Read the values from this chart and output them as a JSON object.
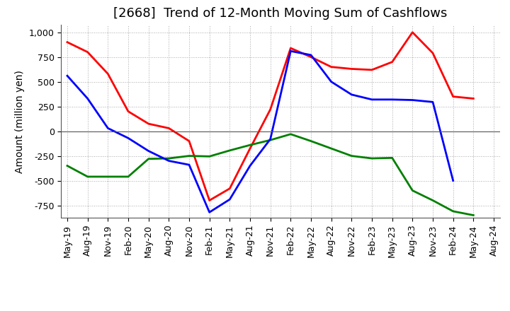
{
  "title": "[2668]  Trend of 12-Month Moving Sum of Cashflows",
  "ylabel": "Amount (million yen)",
  "xlabels": [
    "May-19",
    "Aug-19",
    "Nov-19",
    "Feb-20",
    "May-20",
    "Aug-20",
    "Nov-20",
    "Feb-21",
    "May-21",
    "Aug-21",
    "Nov-21",
    "Feb-22",
    "May-22",
    "Aug-22",
    "Nov-22",
    "Feb-23",
    "May-23",
    "Aug-23",
    "Nov-23",
    "Feb-24",
    "May-24",
    "Aug-24"
  ],
  "operating": [
    900,
    800,
    580,
    200,
    75,
    30,
    -100,
    -700,
    -580,
    -175,
    220,
    840,
    750,
    650,
    630,
    620,
    700,
    1000,
    790,
    350,
    330,
    null
  ],
  "investing": [
    -350,
    -460,
    -460,
    -460,
    -280,
    -275,
    -250,
    -255,
    -195,
    -140,
    -90,
    -30,
    -100,
    -175,
    -250,
    -275,
    -270,
    -600,
    -700,
    -810,
    -850,
    null
  ],
  "free": [
    560,
    330,
    30,
    -70,
    -200,
    -300,
    -340,
    -820,
    -690,
    -350,
    -80,
    810,
    770,
    500,
    370,
    320,
    320,
    315,
    295,
    -500,
    null,
    null
  ],
  "ylim": [
    -875,
    1075
  ],
  "yticks": [
    -750,
    -500,
    -250,
    0,
    250,
    500,
    750,
    1000
  ],
  "operating_color": "#ff0000",
  "investing_color": "#008000",
  "free_color": "#0000ff",
  "background_color": "#ffffff",
  "grid_color": "#aaaaaa",
  "title_fontsize": 13,
  "axis_label_fontsize": 10,
  "tick_fontsize": 9,
  "legend_fontsize": 10,
  "line_width": 2.0
}
